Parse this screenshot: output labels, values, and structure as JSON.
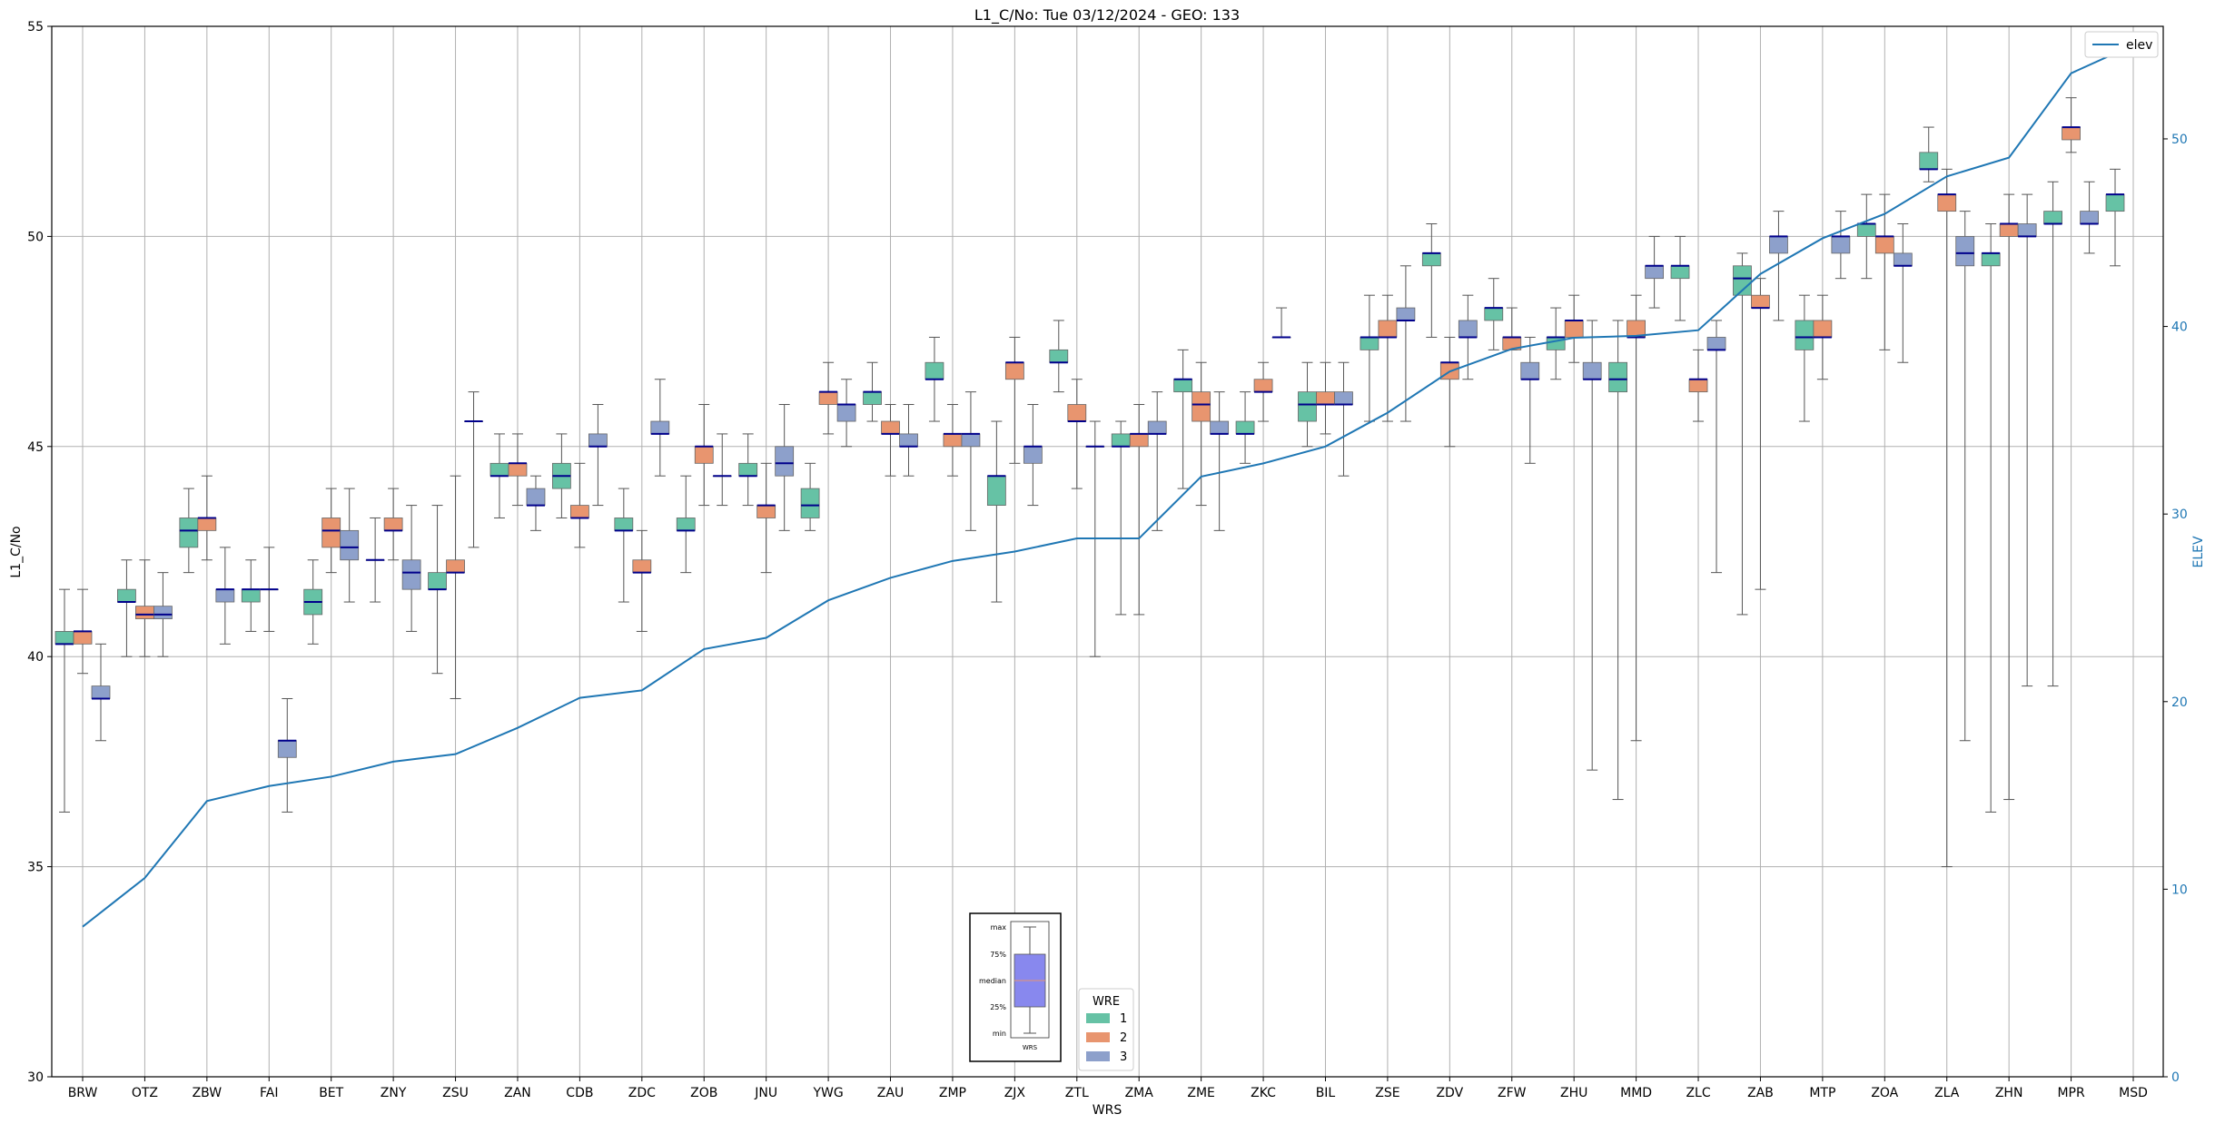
{
  "chart_data": {
    "type": "box",
    "title": "L1_C/No: Tue 03/12/2024 - GEO: 133",
    "xlabel": "WRS",
    "ylabel": "L1_C/No",
    "y2label": "ELEV",
    "ylim": [
      30,
      55
    ],
    "y2lim": [
      0,
      56
    ],
    "yticks": [
      "30",
      "35",
      "40",
      "45",
      "50",
      "55"
    ],
    "y2ticks": [
      "0",
      "10",
      "20",
      "30",
      "40",
      "50"
    ],
    "grid": true,
    "categories": [
      "BRW",
      "OTZ",
      "ZBW",
      "FAI",
      "BET",
      "ZNY",
      "ZSU",
      "ZAN",
      "CDB",
      "ZDC",
      "ZOB",
      "JNU",
      "YWG",
      "ZAU",
      "ZMP",
      "ZJX",
      "ZTL",
      "ZMA",
      "ZME",
      "ZKC",
      "BIL",
      "ZSE",
      "ZDV",
      "ZFW",
      "ZHU",
      "MMD",
      "ZLC",
      "ZAB",
      "MTP",
      "ZOA",
      "ZLA",
      "ZHN",
      "MPR",
      "MSD"
    ],
    "wre_colors": {
      "1": "#66c2a5",
      "2": "#e8956f",
      "3": "#8da0cb"
    },
    "median_color": "#00008b",
    "whisker_color": "#555555",
    "boxes": [
      [
        [
          1,
          36.3,
          40.3,
          40.3,
          40.6,
          41.6
        ],
        [
          2,
          39.6,
          40.3,
          40.6,
          40.6,
          41.6
        ],
        [
          3,
          38.0,
          39.0,
          39.0,
          39.3,
          40.3
        ]
      ],
      [
        [
          1,
          40.0,
          41.3,
          41.3,
          41.6,
          42.3
        ],
        [
          2,
          40.0,
          40.9,
          41.0,
          41.2,
          42.3
        ],
        [
          3,
          40.0,
          40.9,
          41.0,
          41.2,
          42.0
        ]
      ],
      [
        [
          1,
          42.0,
          42.6,
          43.0,
          43.3,
          44.0
        ],
        [
          2,
          42.3,
          43.0,
          43.3,
          43.3,
          44.3
        ],
        [
          3,
          40.3,
          41.3,
          41.6,
          41.6,
          42.6
        ]
      ],
      [
        [
          1,
          40.6,
          41.3,
          41.6,
          41.6,
          42.3
        ],
        [
          2,
          40.6,
          41.6,
          41.6,
          41.6,
          42.6
        ],
        [
          3,
          36.3,
          37.6,
          38.0,
          38.0,
          39.0
        ]
      ],
      [
        [
          1,
          40.3,
          41.0,
          41.3,
          41.6,
          42.3
        ],
        [
          2,
          42.0,
          42.6,
          43.0,
          43.3,
          44.0
        ],
        [
          3,
          41.3,
          42.3,
          42.6,
          43.0,
          44.0
        ]
      ],
      [
        [
          1,
          41.3,
          42.3,
          42.3,
          42.3,
          43.3
        ],
        [
          2,
          42.3,
          43.0,
          43.0,
          43.3,
          44.0
        ],
        [
          3,
          40.6,
          41.6,
          42.0,
          42.3,
          43.6
        ]
      ],
      [
        [
          1,
          39.6,
          41.6,
          41.6,
          42.0,
          43.6
        ],
        [
          2,
          39.0,
          42.0,
          42.0,
          42.3,
          44.3
        ],
        [
          3,
          42.6,
          45.6,
          45.6,
          45.6,
          46.3
        ]
      ],
      [
        [
          1,
          43.3,
          44.3,
          44.3,
          44.6,
          45.3
        ],
        [
          2,
          43.6,
          44.3,
          44.6,
          44.6,
          45.3
        ],
        [
          3,
          43.0,
          43.6,
          43.6,
          44.0,
          44.3
        ]
      ],
      [
        [
          1,
          43.3,
          44.0,
          44.3,
          44.6,
          45.3
        ],
        [
          2,
          42.6,
          43.3,
          43.3,
          43.6,
          44.6
        ],
        [
          3,
          43.6,
          45.0,
          45.0,
          45.3,
          46.0
        ]
      ],
      [
        [
          1,
          41.3,
          43.0,
          43.0,
          43.3,
          44.0
        ],
        [
          2,
          40.6,
          42.0,
          42.0,
          42.3,
          43.0
        ],
        [
          3,
          44.3,
          45.3,
          45.3,
          45.6,
          46.6
        ]
      ],
      [
        [
          1,
          42.0,
          43.0,
          43.0,
          43.3,
          44.3
        ],
        [
          2,
          43.6,
          44.6,
          45.0,
          45.0,
          46.0
        ],
        [
          3,
          43.6,
          44.3,
          44.3,
          44.3,
          45.3
        ]
      ],
      [
        [
          1,
          43.6,
          44.3,
          44.3,
          44.6,
          45.3
        ],
        [
          2,
          42.0,
          43.3,
          43.6,
          43.6,
          44.6
        ],
        [
          3,
          43.0,
          44.3,
          44.6,
          45.0,
          46.0
        ]
      ],
      [
        [
          1,
          43.0,
          43.3,
          43.6,
          44.0,
          44.6
        ],
        [
          2,
          45.3,
          46.0,
          46.3,
          46.3,
          47.0
        ],
        [
          3,
          45.0,
          45.6,
          46.0,
          46.0,
          46.6
        ]
      ],
      [
        [
          1,
          45.6,
          46.0,
          46.3,
          46.3,
          47.0
        ],
        [
          2,
          44.3,
          45.3,
          45.3,
          45.6,
          46.0
        ],
        [
          3,
          44.3,
          45.0,
          45.0,
          45.3,
          46.0
        ]
      ],
      [
        [
          1,
          45.6,
          46.6,
          46.6,
          47.0,
          47.6
        ],
        [
          2,
          44.3,
          45.0,
          45.3,
          45.3,
          46.0
        ],
        [
          3,
          43.0,
          45.0,
          45.3,
          45.3,
          46.3
        ]
      ],
      [
        [
          1,
          41.3,
          43.6,
          44.3,
          44.3,
          45.6
        ],
        [
          2,
          44.6,
          46.6,
          47.0,
          47.0,
          47.6
        ],
        [
          3,
          43.6,
          44.6,
          45.0,
          45.0,
          46.0
        ]
      ],
      [
        [
          1,
          46.3,
          47.0,
          47.0,
          47.3,
          48.0
        ],
        [
          2,
          44.0,
          45.6,
          45.6,
          46.0,
          46.6
        ],
        [
          3,
          40.0,
          45.0,
          45.0,
          45.0,
          45.6
        ]
      ],
      [
        [
          1,
          41.0,
          45.0,
          45.0,
          45.3,
          45.6
        ],
        [
          2,
          41.0,
          45.0,
          45.3,
          45.3,
          46.0
        ],
        [
          3,
          43.0,
          45.3,
          45.3,
          45.6,
          46.3
        ]
      ],
      [
        [
          1,
          44.0,
          46.3,
          46.6,
          46.6,
          47.3
        ],
        [
          2,
          43.6,
          45.6,
          46.0,
          46.3,
          47.0
        ],
        [
          3,
          43.0,
          45.3,
          45.3,
          45.6,
          46.3
        ]
      ],
      [
        [
          1,
          44.6,
          45.3,
          45.3,
          45.6,
          46.3
        ],
        [
          2,
          45.6,
          46.3,
          46.3,
          46.6,
          47.0
        ],
        [
          3,
          47.6,
          47.6,
          47.6,
          47.6,
          48.3
        ]
      ],
      [
        [
          1,
          45.0,
          45.6,
          46.0,
          46.3,
          47.0
        ],
        [
          2,
          45.3,
          46.0,
          46.0,
          46.3,
          47.0
        ],
        [
          3,
          44.3,
          46.0,
          46.0,
          46.3,
          47.0
        ]
      ],
      [
        [
          1,
          45.6,
          47.3,
          47.6,
          47.6,
          48.6
        ],
        [
          2,
          45.6,
          47.6,
          47.6,
          48.0,
          48.6
        ],
        [
          3,
          45.6,
          48.0,
          48.0,
          48.3,
          49.3
        ]
      ],
      [
        [
          1,
          47.6,
          49.3,
          49.6,
          49.6,
          50.3
        ],
        [
          2,
          45.0,
          46.6,
          47.0,
          47.0,
          47.6
        ],
        [
          3,
          46.6,
          47.6,
          47.6,
          48.0,
          48.6
        ]
      ],
      [
        [
          1,
          47.3,
          48.0,
          48.3,
          48.3,
          49.0
        ],
        [
          2,
          47.3,
          47.3,
          47.6,
          47.6,
          48.3
        ],
        [
          3,
          44.6,
          46.6,
          46.6,
          47.0,
          47.6
        ]
      ],
      [
        [
          1,
          46.6,
          47.3,
          47.6,
          47.6,
          48.3
        ],
        [
          2,
          47.0,
          47.6,
          48.0,
          48.0,
          48.6
        ],
        [
          3,
          37.3,
          46.6,
          46.6,
          47.0,
          48.0
        ]
      ],
      [
        [
          1,
          36.6,
          46.3,
          46.6,
          47.0,
          48.0
        ],
        [
          2,
          38.0,
          47.6,
          47.6,
          48.0,
          48.6
        ],
        [
          3,
          48.3,
          49.0,
          49.3,
          49.3,
          50.0
        ]
      ],
      [
        [
          1,
          48.0,
          49.0,
          49.3,
          49.3,
          50.0
        ],
        [
          2,
          45.6,
          46.3,
          46.6,
          46.6,
          47.3
        ],
        [
          3,
          42.0,
          47.3,
          47.3,
          47.6,
          48.0
        ]
      ],
      [
        [
          1,
          41.0,
          48.6,
          49.0,
          49.3,
          49.6
        ],
        [
          2,
          41.6,
          48.3,
          48.3,
          48.6,
          49.0
        ],
        [
          3,
          48.0,
          49.6,
          50.0,
          50.0,
          50.6
        ]
      ],
      [
        [
          1,
          45.6,
          47.3,
          47.6,
          48.0,
          48.6
        ],
        [
          2,
          46.6,
          47.6,
          47.6,
          48.0,
          48.6
        ],
        [
          3,
          49.0,
          49.6,
          50.0,
          50.0,
          50.6
        ]
      ],
      [
        [
          1,
          49.0,
          50.0,
          50.3,
          50.3,
          51.0
        ],
        [
          2,
          47.3,
          49.6,
          50.0,
          50.0,
          51.0
        ],
        [
          3,
          47.0,
          49.3,
          49.3,
          49.6,
          50.3
        ]
      ],
      [
        [
          1,
          51.3,
          51.6,
          51.6,
          52.0,
          52.6
        ],
        [
          2,
          35.0,
          50.6,
          51.0,
          51.0,
          51.6
        ],
        [
          3,
          38.0,
          49.3,
          49.6,
          50.0,
          50.6
        ]
      ],
      [
        [
          1,
          36.3,
          49.3,
          49.6,
          49.6,
          50.3
        ],
        [
          2,
          36.6,
          50.0,
          50.3,
          50.3,
          51.0
        ],
        [
          3,
          39.3,
          50.0,
          50.0,
          50.3,
          51.0
        ]
      ],
      [
        [
          1,
          39.3,
          50.3,
          50.3,
          50.6,
          51.3
        ],
        [
          2,
          52.0,
          52.3,
          52.6,
          52.6,
          53.3
        ],
        [
          3,
          49.6,
          50.3,
          50.3,
          50.6,
          51.3
        ]
      ],
      [
        [
          1,
          49.3,
          50.6,
          51.0,
          51.0,
          51.6
        ],
        [
          2,
          null,
          null,
          null,
          null,
          null
        ],
        [
          3,
          null,
          null,
          null,
          null,
          null
        ]
      ]
    ],
    "elev_series": {
      "name": "elev",
      "color": "#1f77b4",
      "values": [
        8.0,
        10.6,
        14.7,
        15.5,
        16.0,
        16.8,
        17.2,
        18.6,
        20.2,
        20.6,
        22.8,
        23.4,
        25.4,
        26.6,
        27.5,
        28.0,
        28.7,
        28.7,
        32.0,
        32.7,
        33.6,
        35.4,
        37.6,
        38.8,
        39.4,
        39.5,
        39.8,
        42.8,
        44.7,
        46.0,
        48.0,
        49.0,
        53.5,
        55.0
      ]
    },
    "legend_elev": "elev",
    "legend_wre": {
      "title": "WRE",
      "items": [
        "1",
        "2",
        "3"
      ]
    },
    "key_box": {
      "labels": [
        "max",
        "75%",
        "median",
        "25%",
        "min"
      ],
      "xlabel": "WRS"
    }
  }
}
